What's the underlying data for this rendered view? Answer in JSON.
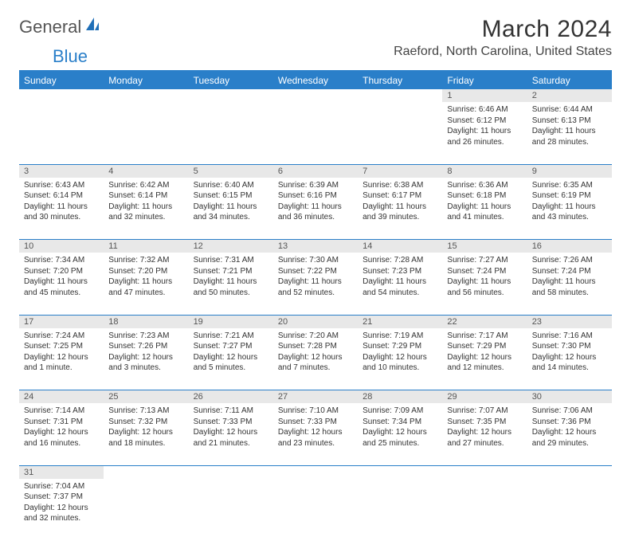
{
  "logo": {
    "text1": "General",
    "text2": "Blue"
  },
  "title": "March 2024",
  "location": "Raeford, North Carolina, United States",
  "colors": {
    "brand": "#2a7fc9",
    "header_bg": "#2a7fc9",
    "header_fg": "#ffffff",
    "daynum_bg": "#e8e8e8",
    "text": "#333333",
    "muted": "#555555"
  },
  "day_headers": [
    "Sunday",
    "Monday",
    "Tuesday",
    "Wednesday",
    "Thursday",
    "Friday",
    "Saturday"
  ],
  "weeks": [
    [
      null,
      null,
      null,
      null,
      null,
      {
        "n": "1",
        "sunrise": "6:46 AM",
        "sunset": "6:12 PM",
        "daylight": "11 hours and 26 minutes."
      },
      {
        "n": "2",
        "sunrise": "6:44 AM",
        "sunset": "6:13 PM",
        "daylight": "11 hours and 28 minutes."
      }
    ],
    [
      {
        "n": "3",
        "sunrise": "6:43 AM",
        "sunset": "6:14 PM",
        "daylight": "11 hours and 30 minutes."
      },
      {
        "n": "4",
        "sunrise": "6:42 AM",
        "sunset": "6:14 PM",
        "daylight": "11 hours and 32 minutes."
      },
      {
        "n": "5",
        "sunrise": "6:40 AM",
        "sunset": "6:15 PM",
        "daylight": "11 hours and 34 minutes."
      },
      {
        "n": "6",
        "sunrise": "6:39 AM",
        "sunset": "6:16 PM",
        "daylight": "11 hours and 36 minutes."
      },
      {
        "n": "7",
        "sunrise": "6:38 AM",
        "sunset": "6:17 PM",
        "daylight": "11 hours and 39 minutes."
      },
      {
        "n": "8",
        "sunrise": "6:36 AM",
        "sunset": "6:18 PM",
        "daylight": "11 hours and 41 minutes."
      },
      {
        "n": "9",
        "sunrise": "6:35 AM",
        "sunset": "6:19 PM",
        "daylight": "11 hours and 43 minutes."
      }
    ],
    [
      {
        "n": "10",
        "sunrise": "7:34 AM",
        "sunset": "7:20 PM",
        "daylight": "11 hours and 45 minutes."
      },
      {
        "n": "11",
        "sunrise": "7:32 AM",
        "sunset": "7:20 PM",
        "daylight": "11 hours and 47 minutes."
      },
      {
        "n": "12",
        "sunrise": "7:31 AM",
        "sunset": "7:21 PM",
        "daylight": "11 hours and 50 minutes."
      },
      {
        "n": "13",
        "sunrise": "7:30 AM",
        "sunset": "7:22 PM",
        "daylight": "11 hours and 52 minutes."
      },
      {
        "n": "14",
        "sunrise": "7:28 AM",
        "sunset": "7:23 PM",
        "daylight": "11 hours and 54 minutes."
      },
      {
        "n": "15",
        "sunrise": "7:27 AM",
        "sunset": "7:24 PM",
        "daylight": "11 hours and 56 minutes."
      },
      {
        "n": "16",
        "sunrise": "7:26 AM",
        "sunset": "7:24 PM",
        "daylight": "11 hours and 58 minutes."
      }
    ],
    [
      {
        "n": "17",
        "sunrise": "7:24 AM",
        "sunset": "7:25 PM",
        "daylight": "12 hours and 1 minute."
      },
      {
        "n": "18",
        "sunrise": "7:23 AM",
        "sunset": "7:26 PM",
        "daylight": "12 hours and 3 minutes."
      },
      {
        "n": "19",
        "sunrise": "7:21 AM",
        "sunset": "7:27 PM",
        "daylight": "12 hours and 5 minutes."
      },
      {
        "n": "20",
        "sunrise": "7:20 AM",
        "sunset": "7:28 PM",
        "daylight": "12 hours and 7 minutes."
      },
      {
        "n": "21",
        "sunrise": "7:19 AM",
        "sunset": "7:29 PM",
        "daylight": "12 hours and 10 minutes."
      },
      {
        "n": "22",
        "sunrise": "7:17 AM",
        "sunset": "7:29 PM",
        "daylight": "12 hours and 12 minutes."
      },
      {
        "n": "23",
        "sunrise": "7:16 AM",
        "sunset": "7:30 PM",
        "daylight": "12 hours and 14 minutes."
      }
    ],
    [
      {
        "n": "24",
        "sunrise": "7:14 AM",
        "sunset": "7:31 PM",
        "daylight": "12 hours and 16 minutes."
      },
      {
        "n": "25",
        "sunrise": "7:13 AM",
        "sunset": "7:32 PM",
        "daylight": "12 hours and 18 minutes."
      },
      {
        "n": "26",
        "sunrise": "7:11 AM",
        "sunset": "7:33 PM",
        "daylight": "12 hours and 21 minutes."
      },
      {
        "n": "27",
        "sunrise": "7:10 AM",
        "sunset": "7:33 PM",
        "daylight": "12 hours and 23 minutes."
      },
      {
        "n": "28",
        "sunrise": "7:09 AM",
        "sunset": "7:34 PM",
        "daylight": "12 hours and 25 minutes."
      },
      {
        "n": "29",
        "sunrise": "7:07 AM",
        "sunset": "7:35 PM",
        "daylight": "12 hours and 27 minutes."
      },
      {
        "n": "30",
        "sunrise": "7:06 AM",
        "sunset": "7:36 PM",
        "daylight": "12 hours and 29 minutes."
      }
    ],
    [
      {
        "n": "31",
        "sunrise": "7:04 AM",
        "sunset": "7:37 PM",
        "daylight": "12 hours and 32 minutes."
      },
      null,
      null,
      null,
      null,
      null,
      null
    ]
  ],
  "labels": {
    "sunrise": "Sunrise:",
    "sunset": "Sunset:",
    "daylight": "Daylight:"
  }
}
